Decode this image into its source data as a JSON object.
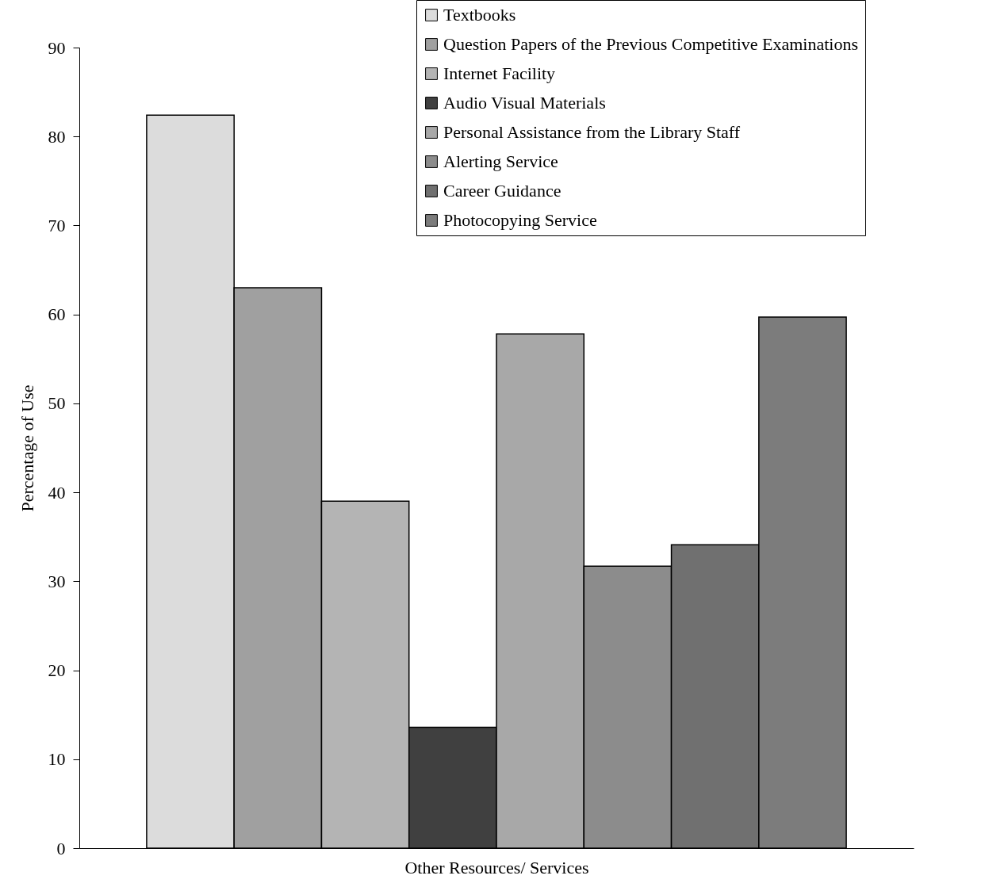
{
  "chart_data": {
    "type": "bar",
    "xlabel": "Other Resources/ Services",
    "ylabel": "Percentage of Use",
    "categories": [
      null
    ],
    "series": [
      {
        "name": "Textbooks",
        "color": "#dcdcdc",
        "values": [
          82.4
        ]
      },
      {
        "name": "Question Papers of the Previous Competitive Examinations",
        "color": "#a0a0a0",
        "values": [
          63.0
        ]
      },
      {
        "name": "Internet Facility",
        "color": "#b4b4b4",
        "values": [
          39.0
        ]
      },
      {
        "name": "Audio Visual Materials",
        "color": "#404040",
        "values": [
          13.6
        ]
      },
      {
        "name": "Personal  Assistance from the Library Staff",
        "color": "#a8a8a8",
        "values": [
          57.8
        ]
      },
      {
        "name": "Alerting Service",
        "color": "#8c8c8c",
        "values": [
          31.7
        ]
      },
      {
        "name": "Career Guidance",
        "color": "#707070",
        "values": [
          34.1
        ]
      },
      {
        "name": "Photocopying Service",
        "color": "#7c7c7c",
        "values": [
          59.7
        ]
      }
    ],
    "ylim": [
      0,
      90
    ],
    "yticks": [
      0,
      10,
      20,
      30,
      40,
      50,
      60,
      70,
      80,
      90
    ],
    "legend": "top right",
    "tick_labels": "y"
  }
}
